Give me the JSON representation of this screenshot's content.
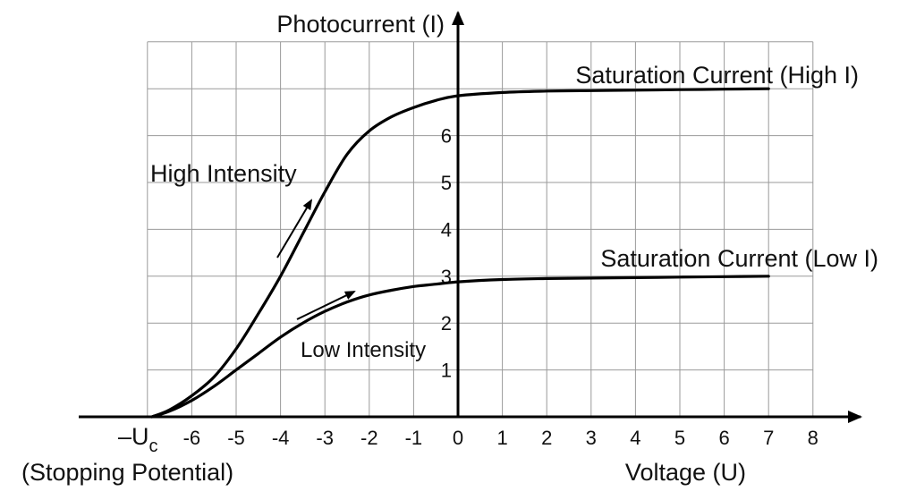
{
  "chart_data": {
    "type": "line",
    "ylabel": "Photocurrent (I)",
    "xlabel": "Voltage (U)",
    "x_ticks": [
      "-6",
      "-5",
      "-4",
      "-3",
      "-2",
      "-1",
      "0",
      "1",
      "2",
      "3",
      "4",
      "5",
      "6",
      "7",
      "8"
    ],
    "y_ticks": [
      "1",
      "2",
      "3",
      "4",
      "5",
      "6"
    ],
    "stopping_potential": {
      "symbol": "–U",
      "subscript": "c",
      "caption": "(Stopping Potential)",
      "x": -6.9
    },
    "xlim": [
      -7.0,
      9.0
    ],
    "ylim": [
      0,
      7.2
    ],
    "grid": true,
    "series": [
      {
        "name": "High Intensity",
        "x": [
          -6.9,
          -6.5,
          -6.0,
          -5.5,
          -5.0,
          -4.5,
          -4.0,
          -3.5,
          -3.0,
          -2.5,
          -2.0,
          -1.5,
          -1.0,
          -0.5,
          0.0,
          1.0,
          2.0,
          3.0,
          4.0,
          5.0,
          6.0,
          7.0
        ],
        "y": [
          0.0,
          0.15,
          0.45,
          0.85,
          1.45,
          2.2,
          3.0,
          3.9,
          4.8,
          5.6,
          6.1,
          6.4,
          6.6,
          6.75,
          6.85,
          6.92,
          6.95,
          6.96,
          6.97,
          6.98,
          6.99,
          7.0
        ]
      },
      {
        "name": "Low Intensity",
        "x": [
          -6.9,
          -6.5,
          -6.0,
          -5.5,
          -5.0,
          -4.5,
          -4.0,
          -3.5,
          -3.0,
          -2.5,
          -2.0,
          -1.5,
          -1.0,
          -0.5,
          0.0,
          1.0,
          2.0,
          3.0,
          4.0,
          5.0,
          6.0,
          7.0
        ],
        "y": [
          0.0,
          0.12,
          0.35,
          0.65,
          1.0,
          1.35,
          1.7,
          2.0,
          2.25,
          2.45,
          2.6,
          2.7,
          2.78,
          2.83,
          2.88,
          2.93,
          2.95,
          2.96,
          2.97,
          2.98,
          2.99,
          3.0
        ]
      }
    ],
    "annotations": [
      {
        "text": "Saturation Current (High I)"
      },
      {
        "text": "Saturation Current (Low I)"
      },
      {
        "text": "High Intensity"
      },
      {
        "text": "Low Intensity"
      }
    ]
  }
}
